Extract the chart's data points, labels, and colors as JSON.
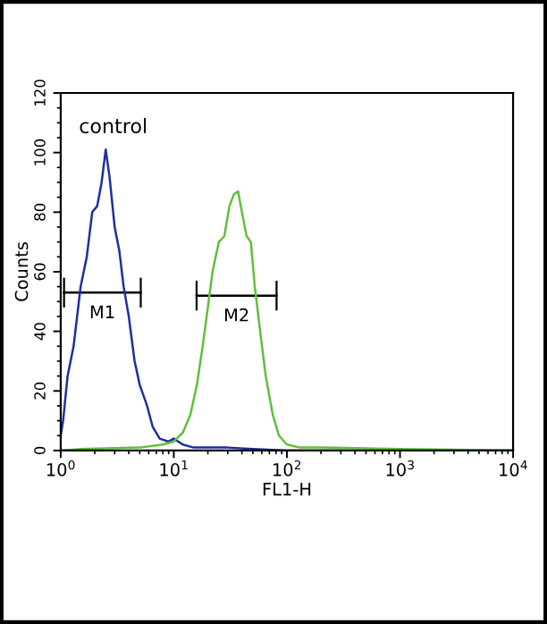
{
  "chart_data": {
    "type": "line",
    "xlabel": "FL1-H",
    "ylabel": "Counts",
    "log": "x",
    "xlim": [
      1,
      10000
    ],
    "xticks": [
      {
        "value": 1,
        "label": "10$^{0}$"
      },
      {
        "value": 10,
        "label": "10$^{1}$"
      },
      {
        "value": 100,
        "label": "10$^{2}$"
      },
      {
        "value": 1000,
        "label": "10$^{3}$"
      },
      {
        "value": 10000,
        "label": "10$^{4}$"
      }
    ],
    "ylim": [
      0,
      120
    ],
    "yticks": [
      0,
      20,
      40,
      60,
      80,
      100,
      120
    ],
    "grid": false,
    "annotations": [
      "control"
    ],
    "series": [
      {
        "name": "M1",
        "color": "#000000",
        "x": [
          1.07,
          5.1
        ],
        "values": [
          53,
          53
        ],
        "errors": [
          5,
          5
        ]
      },
      {
        "name": "M2",
        "color": "#000000",
        "x": [
          15.9,
          81
        ],
        "values": [
          52,
          52
        ],
        "errors": [
          5,
          5
        ]
      },
      {
        "color": "#1f2f9f",
        "x": [
          1,
          1.05,
          1.15,
          1.3,
          1.5,
          1.7,
          1.9,
          2.1,
          2.3,
          2.5,
          2.7,
          3.0,
          3.3,
          3.6,
          4.0,
          4.5,
          5.0,
          5.8,
          6.5,
          7.5,
          9,
          10,
          12,
          15,
          20,
          30,
          50,
          100,
          10000
        ],
        "values": [
          5,
          10,
          25,
          35,
          55,
          65,
          80,
          82,
          90,
          101,
          92,
          75,
          67,
          55,
          45,
          30,
          22,
          15,
          8,
          4,
          3,
          4,
          2,
          1,
          1,
          1,
          0.5,
          0,
          0
        ]
      },
      {
        "color": "#5fc03a",
        "x": [
          1,
          1.5,
          5,
          8,
          10,
          12,
          14,
          16,
          18,
          20,
          22,
          25,
          28,
          31,
          34,
          37,
          40,
          44,
          48,
          52,
          58,
          65,
          75,
          85,
          100,
          130,
          200,
          1000,
          10000
        ],
        "values": [
          0,
          0.5,
          1,
          2,
          3,
          6,
          12,
          22,
          35,
          48,
          60,
          70,
          72,
          82,
          86,
          87,
          80,
          72,
          70,
          55,
          40,
          25,
          12,
          5,
          2,
          1,
          1,
          0.5,
          0
        ]
      }
    ]
  }
}
